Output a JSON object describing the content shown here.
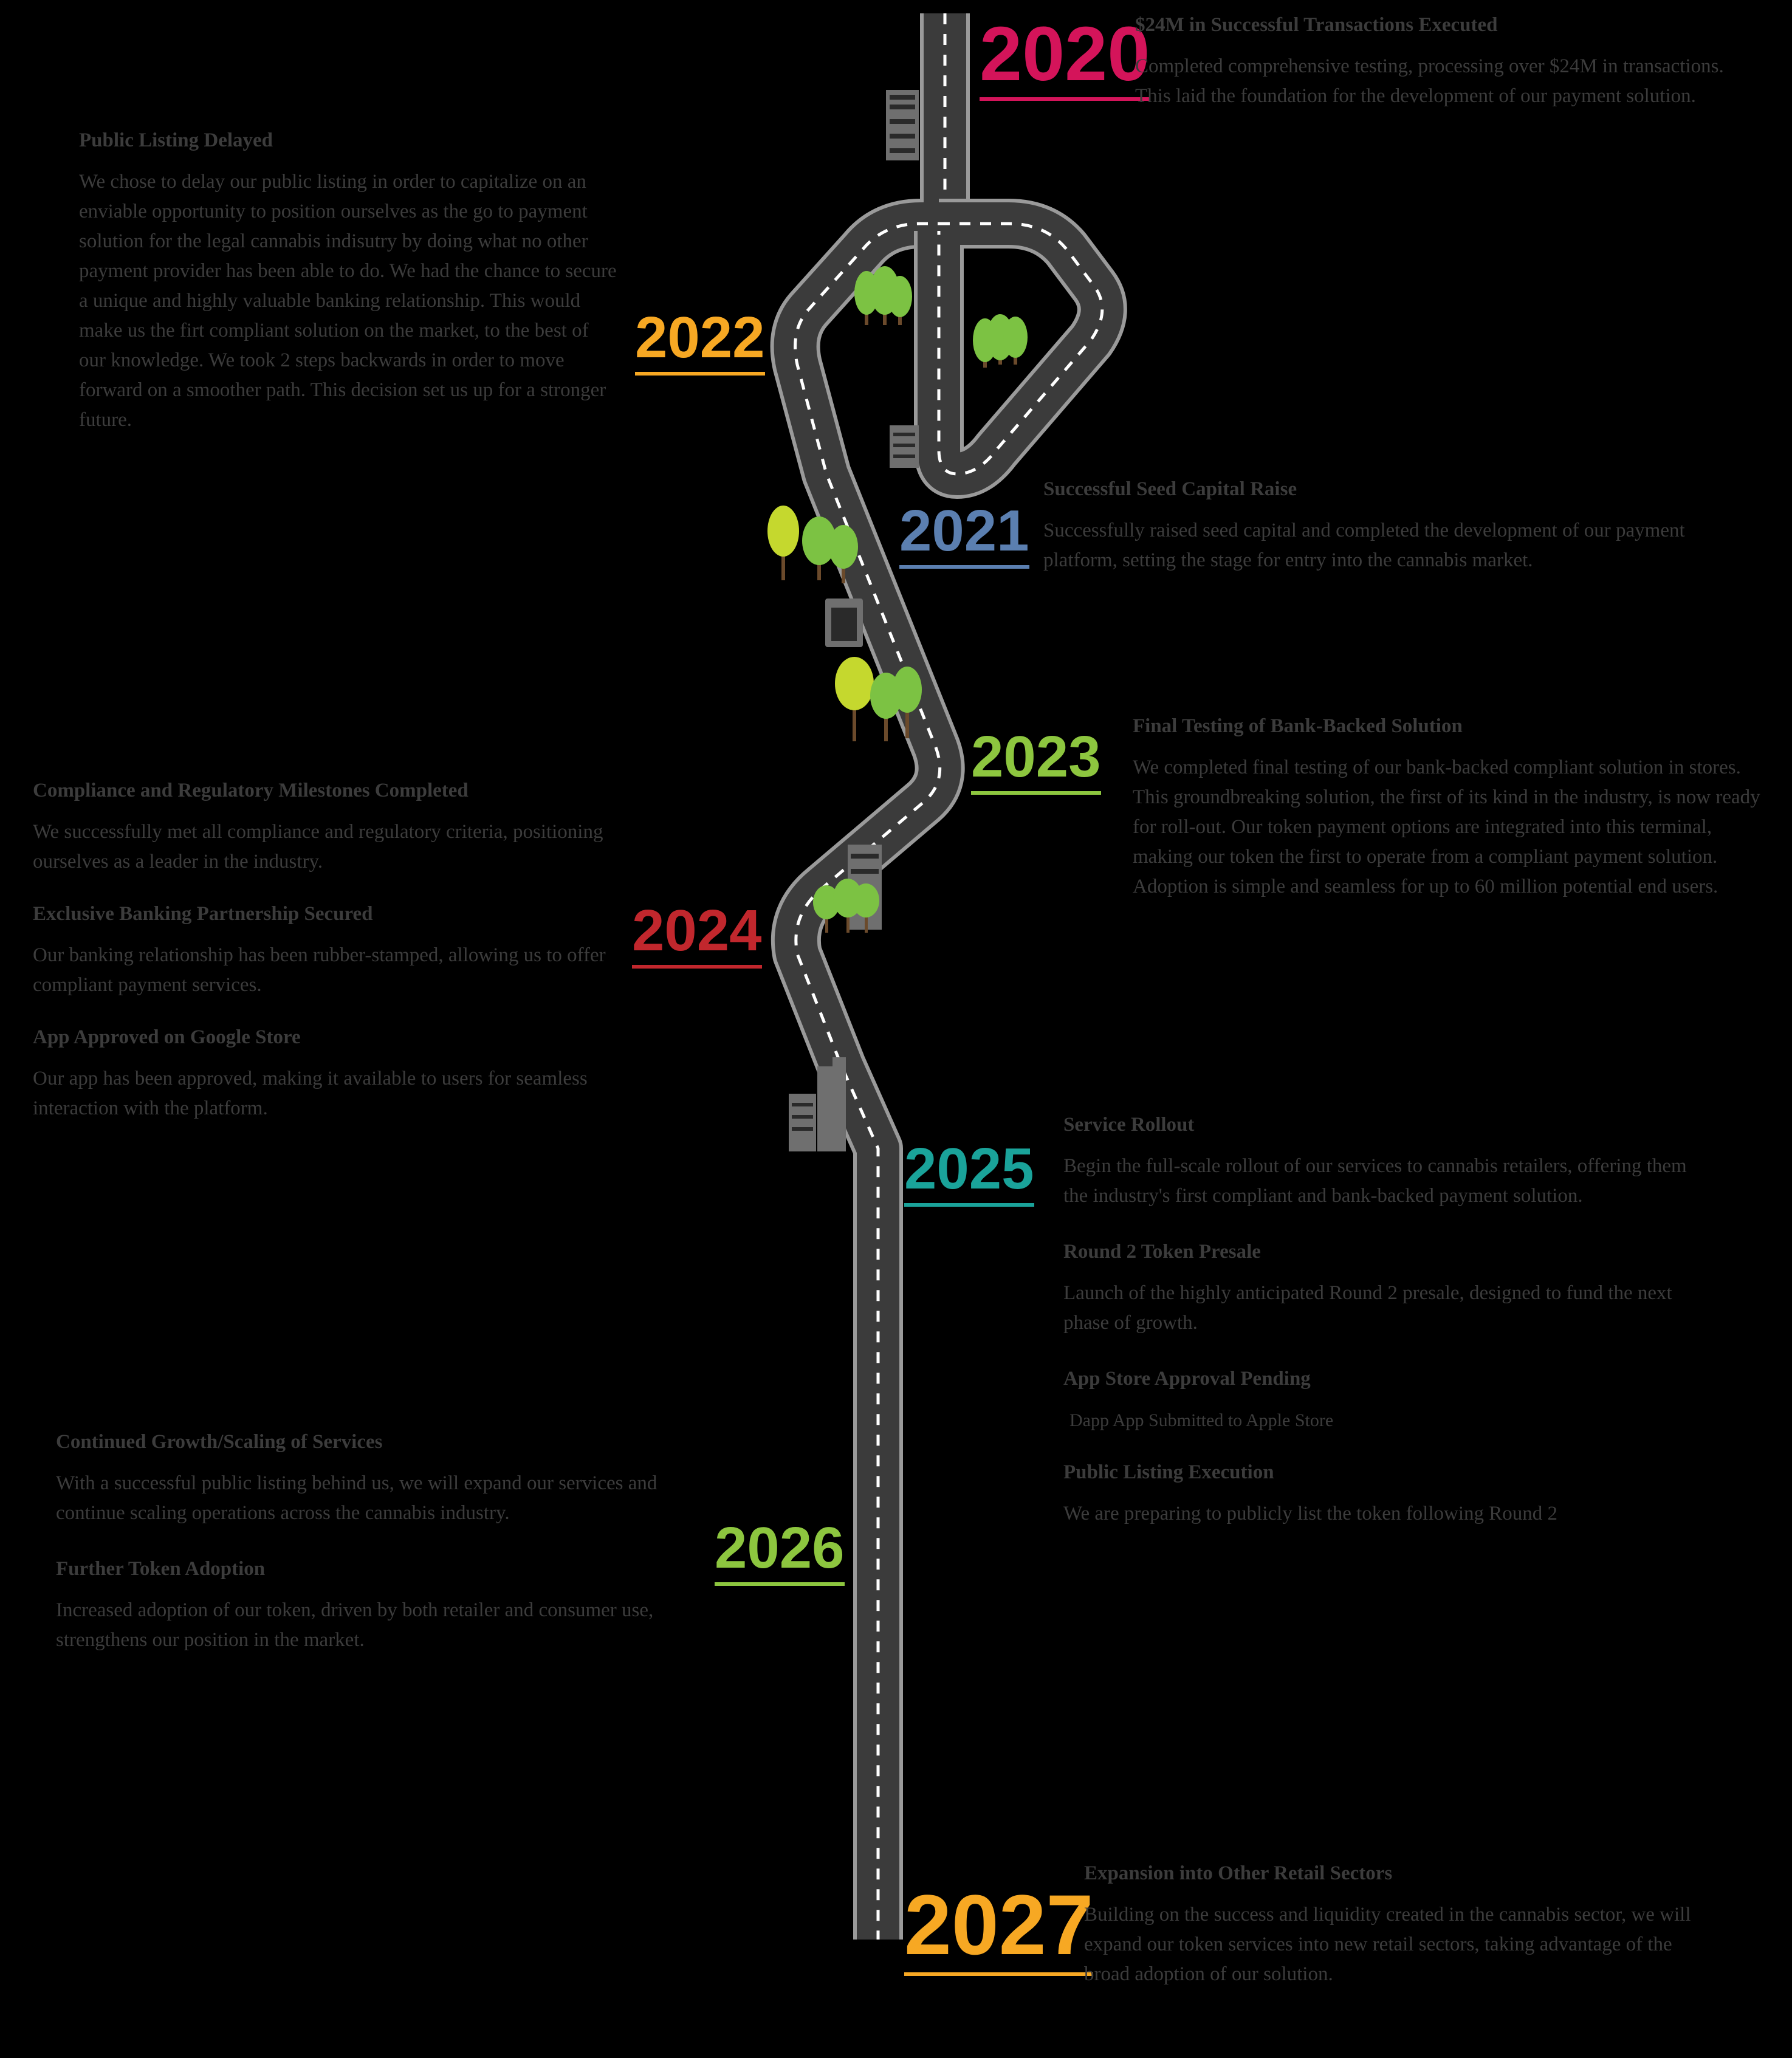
{
  "colors": {
    "road": "#3b3b3b",
    "road_edge": "#9a9a9a",
    "lane": "#ffffff",
    "tree_light": "#c5d82e",
    "tree_green": "#7cc243",
    "tree_trunk": "#6b4a2b",
    "building": "#6f6f6f"
  },
  "milestones": [
    {
      "year": "2020",
      "color": "#d4145a",
      "items": [
        {
          "heading": "$24M in Successful Transactions Executed",
          "text": "Completed comprehensive testing, processing over $24M in transactions. This laid the foundation for the development of our payment solution."
        }
      ]
    },
    {
      "year": "2021",
      "color": "#5b7fb0",
      "items": [
        {
          "heading": "Successful Seed Capital Raise",
          "text": "Successfully raised seed capital and completed the development of our payment platform, setting the stage for entry into the cannabis market."
        }
      ]
    },
    {
      "year": "2022",
      "color": "#f7a823",
      "items": [
        {
          "heading": "Public Listing Delayed",
          "text": "We chose to delay our public listing in order to capitalize on an enviable opportunity to position ourselves as the go to payment solution for the legal cannabis indisutry by doing what no other payment provider has been able to do. We had the chance to secure a unique and highly valuable banking relationship. This would make us the firt compliant solution on the market, to the best of our knowledge. We took 2 steps backwards in order to move forward on a smoother path. This decision set us up for a stronger future."
        }
      ]
    },
    {
      "year": "2023",
      "color": "#8dc63f",
      "items": [
        {
          "heading": "Final Testing of Bank-Backed Solution",
          "text": "We completed final testing of our bank-backed compliant solution in stores. This groundbreaking solution, the first of its kind in the industry, is now ready for roll-out. Our token payment options are integrated into this terminal, making our token the first to operate from a compliant payment solution. Adoption is simple and seamless for up to 60 million potential end users."
        }
      ]
    },
    {
      "year": "2024",
      "color": "#c1272d",
      "items": [
        {
          "heading": "Compliance and Regulatory Milestones Completed",
          "text": "We successfully met all compliance and regulatory criteria, positioning ourselves as a leader in the industry."
        },
        {
          "heading": "Exclusive Banking Partnership Secured",
          "text": "Our banking relationship has been rubber-stamped, allowing us to offer compliant payment services."
        },
        {
          "heading": "App Approved on Google Store",
          "text": "Our app has been approved, making it available to users for seamless interaction with the platform."
        }
      ]
    },
    {
      "year": "2025",
      "color": "#1aa39a",
      "items": [
        {
          "heading": "Service Rollout",
          "text": "Begin the full-scale rollout of our services to cannabis retailers, offering them the industry's first compliant and bank-backed payment solution."
        },
        {
          "heading": "Round 2 Token Presale",
          "text": "Launch of the highly anticipated Round 2 presale, designed to fund the next phase of growth."
        },
        {
          "heading": "App Store Approval Pending",
          "text": "Dapp App Submitted to Apple Store"
        },
        {
          "heading": "Public Listing Execution",
          "text": "We are preparing to publicly list the token following Round 2"
        }
      ]
    },
    {
      "year": "2026",
      "color": "#8dc63f",
      "items": [
        {
          "heading": "Continued Growth/Scaling of Services",
          "text": "With a successful public listing behind us, we will expand our services and continue scaling operations across the cannabis industry."
        },
        {
          "heading": "Further Token Adoption",
          "text": "Increased adoption of our token, driven by both retailer and consumer use, strengthens our position in the market."
        }
      ]
    },
    {
      "year": "2027",
      "color": "#f7a823",
      "items": [
        {
          "heading": "Expansion into Other Retail Sectors",
          "text": "Building on the success and liquidity created in the cannabis sector, we will expand our token services into new retail sectors, taking advantage of the broad adoption of our solution."
        }
      ]
    }
  ]
}
